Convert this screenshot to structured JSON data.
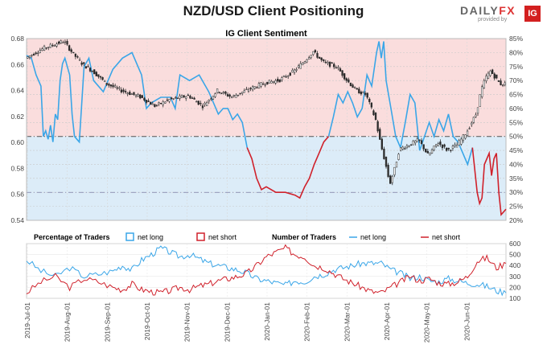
{
  "header": {
    "title": "NZD/USD Client Positioning",
    "brand_text": "DAILYFX",
    "brand_text_main": "DAILY",
    "brand_text_accent": "FX",
    "brand_sub": "provided by",
    "brand_ig": "IG"
  },
  "colors": {
    "net_long": "#3aa6e8",
    "net_short": "#d0212b",
    "long_fill": "#dcecf8",
    "short_fill": "#fadddd",
    "candle": "#2b2b2b"
  },
  "chart_data": [
    {
      "type": "line",
      "title": "IG Client Sentiment",
      "x_labels": [
        "2019-Jul-01",
        "2019-Aug-01",
        "2019-Sep-01",
        "2019-Oct-01",
        "2019-Nov-01",
        "2019-Dec-01",
        "2020-Jan-01",
        "2020-Feb-01",
        "2020-Mar-01",
        "2020-Apr-01",
        "2020-May-01",
        "2020-Jun-01"
      ],
      "y_left": {
        "ticks": [
          "0.68",
          "0.66",
          "0.64",
          "0.62",
          "0.60",
          "0.58",
          "0.56",
          "0.54"
        ],
        "range": [
          0.54,
          0.68
        ]
      },
      "y_right": {
        "ticks": [
          "85%",
          "80%",
          "75%",
          "70%",
          "65%",
          "60%",
          "55%",
          "50%",
          "45%",
          "40%",
          "35%",
          "30%",
          "25%",
          "20%"
        ],
        "range": [
          20,
          85
        ]
      },
      "price_series": {
        "name": "NZD/USD",
        "points": [
          [
            0,
            0.665
          ],
          [
            0.04,
            0.673
          ],
          [
            0.08,
            0.678
          ],
          [
            0.1,
            0.668
          ],
          [
            0.12,
            0.66
          ],
          [
            0.14,
            0.655
          ],
          [
            0.17,
            0.645
          ],
          [
            0.2,
            0.64
          ],
          [
            0.24,
            0.635
          ],
          [
            0.27,
            0.628
          ],
          [
            0.3,
            0.633
          ],
          [
            0.34,
            0.636
          ],
          [
            0.37,
            0.628
          ],
          [
            0.4,
            0.64
          ],
          [
            0.43,
            0.635
          ],
          [
            0.46,
            0.64
          ],
          [
            0.5,
            0.646
          ],
          [
            0.53,
            0.648
          ],
          [
            0.56,
            0.655
          ],
          [
            0.58,
            0.662
          ],
          [
            0.6,
            0.67
          ],
          [
            0.62,
            0.662
          ],
          [
            0.65,
            0.658
          ],
          [
            0.67,
            0.648
          ],
          [
            0.69,
            0.64
          ],
          [
            0.71,
            0.637
          ],
          [
            0.73,
            0.618
          ],
          [
            0.74,
            0.6
          ],
          [
            0.75,
            0.585
          ],
          [
            0.76,
            0.568
          ],
          [
            0.77,
            0.58
          ],
          [
            0.78,
            0.595
          ],
          [
            0.8,
            0.598
          ],
          [
            0.82,
            0.602
          ],
          [
            0.84,
            0.59
          ],
          [
            0.86,
            0.6
          ],
          [
            0.88,
            0.594
          ],
          [
            0.9,
            0.598
          ],
          [
            0.92,
            0.608
          ],
          [
            0.94,
            0.622
          ],
          [
            0.95,
            0.64
          ],
          [
            0.96,
            0.65
          ],
          [
            0.97,
            0.655
          ],
          [
            0.98,
            0.65
          ],
          [
            0.99,
            0.645
          ]
        ]
      },
      "net_long_pct": {
        "name": "net long",
        "segments": [
          [
            [
              0,
              79
            ],
            [
              0.01,
              78
            ],
            [
              0.02,
              72
            ],
            [
              0.03,
              68
            ],
            [
              0.035,
              50
            ],
            [
              0.04,
              52
            ],
            [
              0.045,
              49
            ],
            [
              0.05,
              54
            ],
            [
              0.055,
              48
            ],
            [
              0.06,
              58
            ],
            [
              0.065,
              56
            ],
            [
              0.07,
              70
            ],
            [
              0.075,
              76
            ],
            [
              0.08,
              78
            ],
            [
              0.09,
              72
            ],
            [
              0.095,
              58
            ],
            [
              0.1,
              50
            ],
            [
              0.105,
              49
            ],
            [
              0.11,
              48
            ],
            [
              0.12,
              75
            ],
            [
              0.13,
              78
            ],
            [
              0.14,
              70
            ],
            [
              0.16,
              66
            ],
            [
              0.18,
              74
            ],
            [
              0.2,
              78
            ],
            [
              0.22,
              80
            ],
            [
              0.24,
              72
            ],
            [
              0.25,
              60
            ],
            [
              0.26,
              62
            ],
            [
              0.28,
              64
            ],
            [
              0.3,
              64
            ],
            [
              0.31,
              60
            ],
            [
              0.32,
              72
            ],
            [
              0.34,
              70
            ],
            [
              0.36,
              72
            ],
            [
              0.38,
              66
            ],
            [
              0.4,
              58
            ],
            [
              0.41,
              60
            ],
            [
              0.42,
              60
            ],
            [
              0.43,
              56
            ],
            [
              0.44,
              58
            ],
            [
              0.45,
              55
            ],
            [
              0.46,
              46
            ]
          ],
          [
            [
              0.63,
              50
            ],
            [
              0.64,
              57
            ],
            [
              0.65,
              65
            ],
            [
              0.66,
              62
            ],
            [
              0.67,
              66
            ],
            [
              0.68,
              62
            ],
            [
              0.69,
              57
            ],
            [
              0.7,
              60
            ],
            [
              0.71,
              72
            ],
            [
              0.72,
              68
            ],
            [
              0.73,
              80
            ],
            [
              0.735,
              84
            ],
            [
              0.74,
              78
            ],
            [
              0.745,
              84
            ],
            [
              0.75,
              70
            ],
            [
              0.76,
              60
            ],
            [
              0.77,
              50
            ],
            [
              0.78,
              46
            ],
            [
              0.79,
              55
            ],
            [
              0.8,
              65
            ],
            [
              0.81,
              62
            ],
            [
              0.82,
              45
            ],
            [
              0.83,
              50
            ],
            [
              0.84,
              55
            ],
            [
              0.85,
              50
            ],
            [
              0.86,
              56
            ],
            [
              0.87,
              52
            ],
            [
              0.88,
              58
            ],
            [
              0.89,
              50
            ],
            [
              0.9,
              48
            ],
            [
              0.91,
              44
            ],
            [
              0.92,
              40
            ],
            [
              0.93,
              46
            ]
          ]
        ]
      },
      "net_short_pct": {
        "name": "net short",
        "segments": [
          [
            [
              0.46,
              46
            ],
            [
              0.47,
              42
            ],
            [
              0.48,
              35
            ],
            [
              0.49,
              31
            ],
            [
              0.5,
              32
            ],
            [
              0.52,
              30
            ],
            [
              0.54,
              30
            ],
            [
              0.56,
              29
            ],
            [
              0.57,
              28
            ],
            [
              0.58,
              32
            ],
            [
              0.59,
              35
            ],
            [
              0.6,
              40
            ],
            [
              0.61,
              44
            ],
            [
              0.62,
              48
            ],
            [
              0.63,
              50
            ]
          ],
          [
            [
              0.93,
              46
            ],
            [
              0.94,
              30
            ],
            [
              0.945,
              26
            ],
            [
              0.95,
              28
            ],
            [
              0.955,
              40
            ],
            [
              0.96,
              42
            ],
            [
              0.965,
              44
            ],
            [
              0.97,
              36
            ],
            [
              0.975,
              42
            ],
            [
              0.98,
              44
            ],
            [
              0.985,
              30
            ],
            [
              0.99,
              22
            ],
            [
              0.995,
              23
            ],
            [
              1.0,
              24
            ]
          ]
        ]
      }
    },
    {
      "type": "line",
      "title": "Number of Traders",
      "legend_left": {
        "label": "Percentage of Traders",
        "long": "net long",
        "short": "net short"
      },
      "legend_right": {
        "label": "Number of Traders",
        "long": "net long",
        "short": "net short"
      },
      "y_right": {
        "ticks": [
          "600",
          "500",
          "400",
          "300",
          "200",
          "100"
        ],
        "range": [
          100,
          600
        ]
      },
      "series": [
        {
          "name": "net long",
          "points": [
            [
              0,
              450
            ],
            [
              0.03,
              350
            ],
            [
              0.06,
              300
            ],
            [
              0.09,
              380
            ],
            [
              0.12,
              300
            ],
            [
              0.15,
              320
            ],
            [
              0.18,
              350
            ],
            [
              0.2,
              400
            ],
            [
              0.22,
              360
            ],
            [
              0.24,
              450
            ],
            [
              0.26,
              500
            ],
            [
              0.28,
              560
            ],
            [
              0.3,
              520
            ],
            [
              0.32,
              480
            ],
            [
              0.34,
              500
            ],
            [
              0.36,
              460
            ],
            [
              0.38,
              420
            ],
            [
              0.4,
              400
            ],
            [
              0.42,
              380
            ],
            [
              0.44,
              360
            ],
            [
              0.46,
              330
            ],
            [
              0.48,
              280
            ],
            [
              0.5,
              260
            ],
            [
              0.52,
              240
            ],
            [
              0.54,
              220
            ],
            [
              0.56,
              260
            ],
            [
              0.58,
              250
            ],
            [
              0.6,
              300
            ],
            [
              0.62,
              320
            ],
            [
              0.64,
              360
            ],
            [
              0.66,
              380
            ],
            [
              0.68,
              400
            ],
            [
              0.7,
              420
            ],
            [
              0.72,
              420
            ],
            [
              0.74,
              420
            ],
            [
              0.76,
              360
            ],
            [
              0.78,
              330
            ],
            [
              0.8,
              280
            ],
            [
              0.82,
              300
            ],
            [
              0.84,
              260
            ],
            [
              0.86,
              250
            ],
            [
              0.88,
              280
            ],
            [
              0.9,
              260
            ],
            [
              0.92,
              240
            ],
            [
              0.94,
              230
            ],
            [
              0.96,
              210
            ],
            [
              0.98,
              170
            ],
            [
              1.0,
              150
            ]
          ]
        },
        {
          "name": "net short",
          "points": [
            [
              0,
              150
            ],
            [
              0.03,
              250
            ],
            [
              0.06,
              300
            ],
            [
              0.09,
              200
            ],
            [
              0.12,
              280
            ],
            [
              0.15,
              250
            ],
            [
              0.18,
              200
            ],
            [
              0.2,
              180
            ],
            [
              0.22,
              230
            ],
            [
              0.24,
              180
            ],
            [
              0.26,
              160
            ],
            [
              0.28,
              150
            ],
            [
              0.3,
              170
            ],
            [
              0.32,
              200
            ],
            [
              0.34,
              180
            ],
            [
              0.36,
              210
            ],
            [
              0.38,
              230
            ],
            [
              0.4,
              260
            ],
            [
              0.42,
              280
            ],
            [
              0.44,
              300
            ],
            [
              0.46,
              330
            ],
            [
              0.48,
              400
            ],
            [
              0.5,
              480
            ],
            [
              0.52,
              520
            ],
            [
              0.54,
              560
            ],
            [
              0.56,
              500
            ],
            [
              0.58,
              480
            ],
            [
              0.6,
              400
            ],
            [
              0.62,
              380
            ],
            [
              0.64,
              330
            ],
            [
              0.66,
              280
            ],
            [
              0.68,
              240
            ],
            [
              0.7,
              200
            ],
            [
              0.72,
              160
            ],
            [
              0.74,
              150
            ],
            [
              0.76,
              200
            ],
            [
              0.78,
              250
            ],
            [
              0.8,
              300
            ],
            [
              0.82,
              260
            ],
            [
              0.84,
              280
            ],
            [
              0.86,
              240
            ],
            [
              0.88,
              230
            ],
            [
              0.9,
              250
            ],
            [
              0.92,
              300
            ],
            [
              0.94,
              440
            ],
            [
              0.96,
              470
            ],
            [
              0.98,
              380
            ],
            [
              1.0,
              420
            ]
          ]
        }
      ]
    }
  ]
}
